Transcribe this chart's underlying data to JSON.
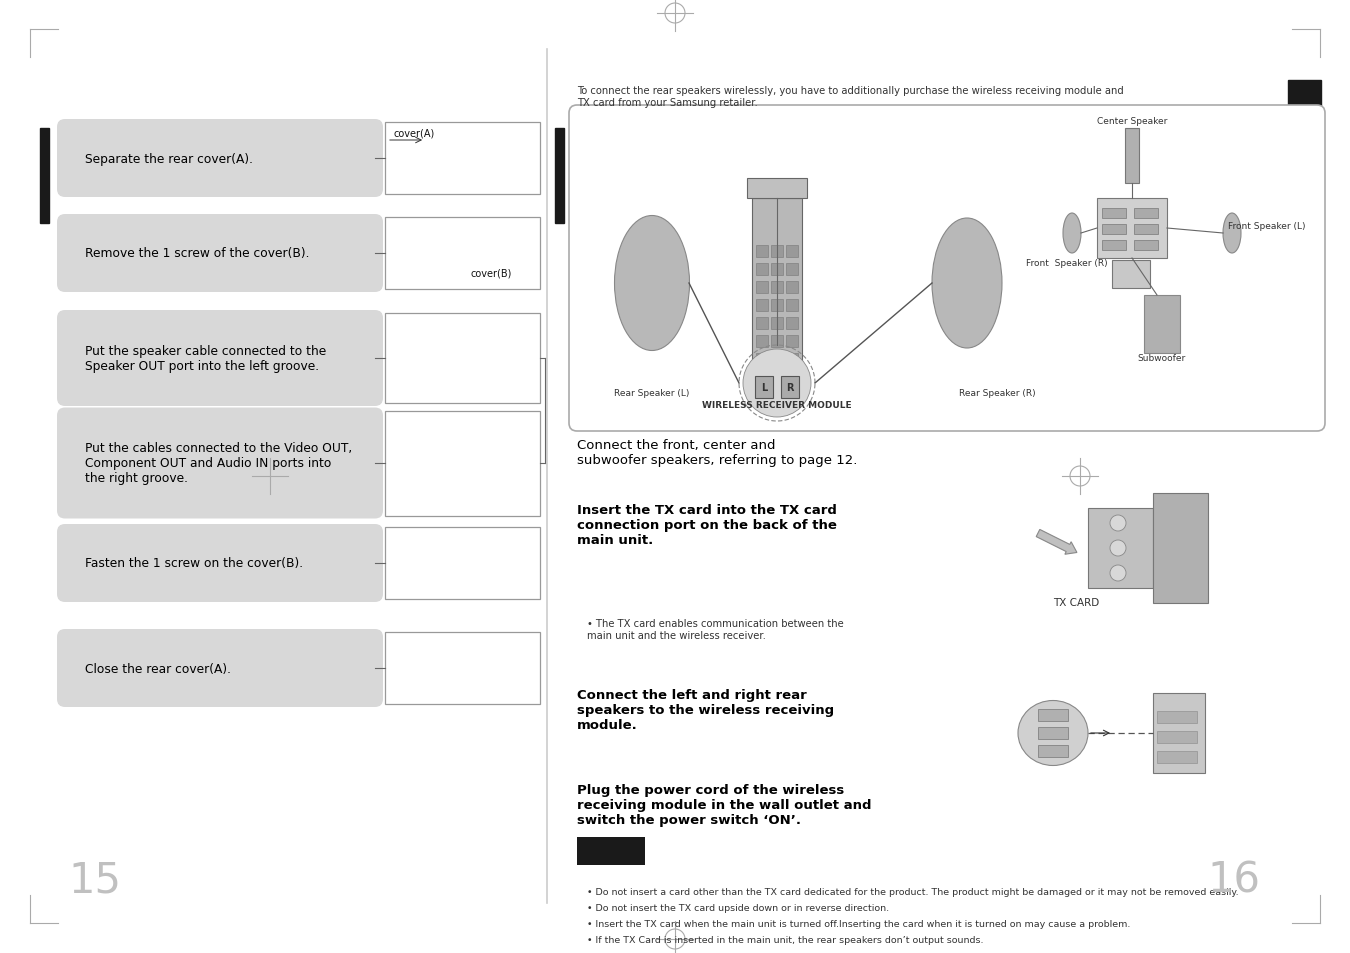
{
  "bg_color": "#ffffff",
  "left_instructions": [
    "Separate the rear cover(A).",
    "Remove the 1 screw of the cover(B).",
    "Put the speaker cable connected to the\nSpeaker OUT port into the left groove.",
    "Put the cables connected to the Video OUT,\nComponent OUT and Audio IN ports into\nthe right groove.",
    "Fasten the 1 screw on the cover(B).",
    "Close the rear cover(A)."
  ],
  "right_header": "To connect the rear speakers wirelessly, you have to additionally purchase the wireless receiving module and\nTX card from your Samsung retailer.",
  "step1_normal": "Connect the front, center and\nsubwoofer speakers, referring to page 12.",
  "step2_bold": "Insert the TX card into the TX card\nconnection port on the back of the\nmain unit.",
  "step3_bold": "Connect the left and right rear\nspeakers to the wireless receiving\nmodule.",
  "step4_bold": "Plug the power cord of the wireless\nreceiving module in the wall outlet and\nswitch the power switch ‘ON’.",
  "bullet_note": "The TX card enables communication between the\nmain unit and the wireless receiver.",
  "footer_notes": [
    "Do not insert a card other than the TX card dedicated for the product. The product might be damaged or it may not be removed easily.",
    "Do not insert the TX card upside down or in reverse direction.",
    "Insert the TX card when the main unit is turned off.Inserting the card when it is turned on may cause a problem.",
    "If the TX Card is inserted in the main unit, the rear speakers don’t output sounds."
  ],
  "page_left": "15",
  "page_right": "16",
  "label_covera": "cover(A)",
  "label_coverb": "cover(B)",
  "label_txcard": "TX CARD",
  "label_wireless": "WIRELESS RECEIVER MODULE",
  "speaker_labels": [
    "Center Speaker",
    "Front  Speaker (R)",
    "Front Speaker (L)",
    "Subwoofer",
    "Rear Speaker (L)",
    "Rear Speaker (R)"
  ]
}
